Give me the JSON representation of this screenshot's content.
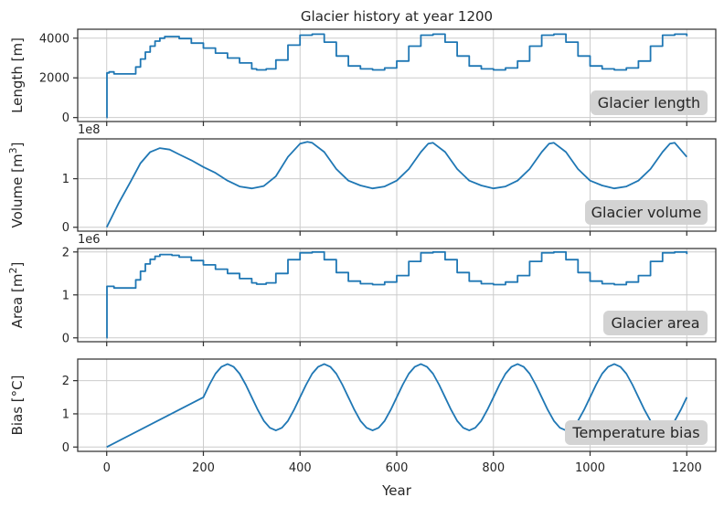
{
  "title": "Glacier history at year 1200",
  "xlabel": "Year",
  "colors": {
    "series": "#1f77b4",
    "legend_box": "#d3d3d3",
    "grid": "#cccccc",
    "axis": "#333333"
  },
  "x_ticks": [
    "0",
    "200",
    "400",
    "600",
    "800",
    "1000",
    "1200"
  ],
  "chart_data": [
    {
      "type": "line",
      "ylabel": "Length [m]",
      "label": "Glacier length",
      "offset_label": "",
      "xlim": [
        -60,
        1260
      ],
      "ylim": [
        -200,
        4450
      ],
      "y_ticks": [
        0,
        2000,
        4000
      ],
      "y_tick_labels": [
        "0",
        "2000",
        "4000"
      ],
      "step": true,
      "x": [
        0,
        0.5,
        5,
        15,
        50,
        60,
        70,
        80,
        90,
        100,
        110,
        120,
        135,
        150,
        175,
        200,
        225,
        250,
        275,
        300,
        310,
        330,
        350,
        375,
        400,
        425,
        450,
        475,
        500,
        525,
        550,
        575,
        600,
        625,
        650,
        675,
        700,
        725,
        750,
        775,
        800,
        825,
        850,
        875,
        900,
        925,
        950,
        975,
        1000,
        1025,
        1050,
        1075,
        1100,
        1125,
        1150,
        1175,
        1200
      ],
      "y": [
        0,
        2250,
        2300,
        2200,
        2200,
        2550,
        2950,
        3300,
        3600,
        3850,
        4000,
        4080,
        4080,
        3980,
        3750,
        3500,
        3250,
        3000,
        2750,
        2450,
        2400,
        2450,
        2900,
        3650,
        4150,
        4200,
        3800,
        3100,
        2600,
        2450,
        2400,
        2500,
        2850,
        3600,
        4150,
        4200,
        3800,
        3100,
        2600,
        2450,
        2400,
        2500,
        2850,
        3600,
        4150,
        4200,
        3800,
        3100,
        2600,
        2450,
        2400,
        2500,
        2850,
        3600,
        4150,
        4200,
        4100
      ]
    },
    {
      "type": "line",
      "ylabel": "Volume [m$^3$]",
      "ylabel_text": "Volume [m",
      "ylabel_sup": "3",
      "ylabel_close": "]",
      "label": "Glacier volume",
      "offset_label": "1e8",
      "xlim": [
        -60,
        1260
      ],
      "ylim": [
        -0.08,
        1.82
      ],
      "y_ticks": [
        0,
        1
      ],
      "y_tick_labels": [
        "0",
        "1"
      ],
      "step": false,
      "x": [
        0,
        10,
        25,
        50,
        70,
        90,
        110,
        130,
        150,
        175,
        200,
        225,
        250,
        275,
        300,
        325,
        350,
        375,
        400,
        415,
        425,
        450,
        475,
        500,
        525,
        550,
        575,
        600,
        625,
        650,
        665,
        675,
        700,
        725,
        750,
        775,
        800,
        825,
        850,
        875,
        900,
        915,
        925,
        950,
        975,
        1000,
        1025,
        1050,
        1075,
        1100,
        1125,
        1150,
        1165,
        1175,
        1200
      ],
      "y": [
        0,
        0.2,
        0.5,
        0.95,
        1.32,
        1.55,
        1.63,
        1.6,
        1.5,
        1.38,
        1.24,
        1.12,
        0.96,
        0.84,
        0.8,
        0.85,
        1.05,
        1.45,
        1.72,
        1.76,
        1.74,
        1.55,
        1.2,
        0.96,
        0.86,
        0.8,
        0.84,
        0.96,
        1.2,
        1.55,
        1.72,
        1.74,
        1.55,
        1.2,
        0.96,
        0.86,
        0.8,
        0.84,
        0.96,
        1.2,
        1.55,
        1.72,
        1.74,
        1.55,
        1.2,
        0.96,
        0.86,
        0.8,
        0.84,
        0.96,
        1.2,
        1.55,
        1.72,
        1.74,
        1.45
      ]
    },
    {
      "type": "line",
      "ylabel": "Area [m$^2$]",
      "ylabel_text": "Area [m",
      "ylabel_sup": "2",
      "ylabel_close": "]",
      "label": "Glacier area",
      "offset_label": "1e6",
      "xlim": [
        -60,
        1260
      ],
      "ylim": [
        -0.09,
        2.08
      ],
      "y_ticks": [
        0,
        1,
        2
      ],
      "y_tick_labels": [
        "0",
        "1",
        "2"
      ],
      "step": true,
      "x": [
        0,
        0.5,
        5,
        15,
        50,
        60,
        70,
        80,
        90,
        100,
        110,
        120,
        135,
        150,
        175,
        200,
        225,
        250,
        275,
        300,
        310,
        330,
        350,
        375,
        400,
        425,
        450,
        475,
        500,
        525,
        550,
        575,
        600,
        625,
        650,
        675,
        700,
        725,
        750,
        775,
        800,
        825,
        850,
        875,
        900,
        925,
        950,
        975,
        1000,
        1025,
        1050,
        1075,
        1100,
        1125,
        1150,
        1175,
        1200
      ],
      "y": [
        0,
        1.2,
        1.2,
        1.16,
        1.16,
        1.35,
        1.55,
        1.72,
        1.83,
        1.9,
        1.94,
        1.94,
        1.92,
        1.88,
        1.8,
        1.7,
        1.6,
        1.5,
        1.38,
        1.28,
        1.25,
        1.28,
        1.5,
        1.82,
        1.98,
        2.0,
        1.82,
        1.52,
        1.32,
        1.26,
        1.24,
        1.3,
        1.45,
        1.78,
        1.98,
        2.0,
        1.82,
        1.52,
        1.32,
        1.26,
        1.24,
        1.3,
        1.45,
        1.78,
        1.98,
        2.0,
        1.82,
        1.52,
        1.32,
        1.26,
        1.24,
        1.3,
        1.45,
        1.78,
        1.98,
        2.0,
        1.95
      ]
    },
    {
      "type": "line",
      "ylabel": "Bias [°C]",
      "label": "Temperature bias",
      "offset_label": "",
      "xlim": [
        -60,
        1260
      ],
      "ylim": [
        -0.13,
        2.65
      ],
      "y_ticks": [
        0,
        1,
        2
      ],
      "y_tick_labels": [
        "0",
        "1",
        "2"
      ],
      "step": false,
      "x": [
        0,
        200,
        212.5,
        225,
        237.5,
        250,
        262.5,
        275,
        287.5,
        300,
        312.5,
        325,
        337.5,
        350,
        362.5,
        375,
        387.5,
        400,
        412.5,
        425,
        437.5,
        450,
        462.5,
        475,
        487.5,
        500,
        512.5,
        525,
        537.5,
        550,
        562.5,
        575,
        587.5,
        600,
        612.5,
        625,
        637.5,
        650,
        662.5,
        675,
        687.5,
        700,
        712.5,
        725,
        737.5,
        750,
        762.5,
        775,
        787.5,
        800,
        812.5,
        825,
        837.5,
        850,
        862.5,
        875,
        887.5,
        900,
        912.5,
        925,
        937.5,
        950,
        962.5,
        975,
        987.5,
        1000,
        1012.5,
        1025,
        1037.5,
        1050,
        1062.5,
        1075,
        1087.5,
        1100,
        1112.5,
        1125,
        1137.5,
        1150,
        1162.5,
        1175,
        1187.5,
        1200
      ],
      "y": [
        0,
        1.5,
        1.88,
        2.21,
        2.42,
        2.5,
        2.42,
        2.21,
        1.88,
        1.5,
        1.12,
        0.79,
        0.58,
        0.5,
        0.58,
        0.79,
        1.12,
        1.5,
        1.88,
        2.21,
        2.42,
        2.5,
        2.42,
        2.21,
        1.88,
        1.5,
        1.12,
        0.79,
        0.58,
        0.5,
        0.58,
        0.79,
        1.12,
        1.5,
        1.88,
        2.21,
        2.42,
        2.5,
        2.42,
        2.21,
        1.88,
        1.5,
        1.12,
        0.79,
        0.58,
        0.5,
        0.58,
        0.79,
        1.12,
        1.5,
        1.88,
        2.21,
        2.42,
        2.5,
        2.42,
        2.21,
        1.88,
        1.5,
        1.12,
        0.79,
        0.58,
        0.5,
        0.58,
        0.79,
        1.12,
        1.5,
        1.88,
        2.21,
        2.42,
        2.5,
        2.42,
        2.21,
        1.88,
        1.5,
        1.12,
        0.79,
        0.58,
        0.5,
        0.58,
        0.79,
        1.12,
        1.5
      ]
    }
  ]
}
